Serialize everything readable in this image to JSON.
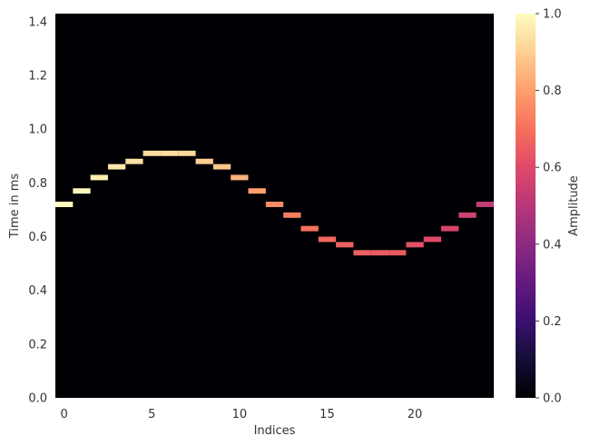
{
  "chart_data": {
    "type": "heatmap",
    "colormap": "magma",
    "background_color": "#000004",
    "xlabel": "Indices",
    "ylabel": "Time in ms",
    "colorbar_label": "Amplitude",
    "xlim": [
      -0.5,
      24.5
    ],
    "ylim": [
      0,
      1.43
    ],
    "x_ticks": [
      0,
      5,
      10,
      15,
      20
    ],
    "y_ticks": [
      0.0,
      0.2,
      0.4,
      0.6,
      0.8,
      1.0,
      1.2,
      1.4
    ],
    "y_tick_labels": [
      "0.0",
      "0.2",
      "0.4",
      "0.6",
      "0.8",
      "1.0",
      "1.2",
      "1.4"
    ],
    "colorbar_range": [
      0,
      1
    ],
    "colorbar_ticks": [
      0.0,
      0.2,
      0.4,
      0.6,
      0.8,
      1.0
    ],
    "colorbar_tick_labels": [
      "0.0",
      "0.2",
      "0.4",
      "0.6",
      "0.8",
      "1.0"
    ],
    "cell_height_ms": 0.02,
    "cells": [
      {
        "index": 0,
        "time_ms": 0.72,
        "amplitude": 1.0
      },
      {
        "index": 1,
        "time_ms": 0.77,
        "amplitude": 0.99
      },
      {
        "index": 2,
        "time_ms": 0.82,
        "amplitude": 0.97
      },
      {
        "index": 3,
        "time_ms": 0.86,
        "amplitude": 0.95
      },
      {
        "index": 4,
        "time_ms": 0.88,
        "amplitude": 0.94
      },
      {
        "index": 5,
        "time_ms": 0.91,
        "amplitude": 0.93
      },
      {
        "index": 6,
        "time_ms": 0.91,
        "amplitude": 0.93
      },
      {
        "index": 7,
        "time_ms": 0.91,
        "amplitude": 0.92
      },
      {
        "index": 8,
        "time_ms": 0.88,
        "amplitude": 0.9
      },
      {
        "index": 9,
        "time_ms": 0.86,
        "amplitude": 0.88
      },
      {
        "index": 10,
        "time_ms": 0.82,
        "amplitude": 0.84
      },
      {
        "index": 11,
        "time_ms": 0.77,
        "amplitude": 0.8
      },
      {
        "index": 12,
        "time_ms": 0.72,
        "amplitude": 0.76
      },
      {
        "index": 13,
        "time_ms": 0.68,
        "amplitude": 0.73
      },
      {
        "index": 14,
        "time_ms": 0.63,
        "amplitude": 0.7
      },
      {
        "index": 15,
        "time_ms": 0.59,
        "amplitude": 0.68
      },
      {
        "index": 16,
        "time_ms": 0.57,
        "amplitude": 0.66
      },
      {
        "index": 17,
        "time_ms": 0.54,
        "amplitude": 0.66
      },
      {
        "index": 18,
        "time_ms": 0.54,
        "amplitude": 0.65
      },
      {
        "index": 19,
        "time_ms": 0.54,
        "amplitude": 0.64
      },
      {
        "index": 20,
        "time_ms": 0.57,
        "amplitude": 0.62
      },
      {
        "index": 21,
        "time_ms": 0.59,
        "amplitude": 0.6
      },
      {
        "index": 22,
        "time_ms": 0.63,
        "amplitude": 0.58
      },
      {
        "index": 23,
        "time_ms": 0.68,
        "amplitude": 0.56
      },
      {
        "index": 24,
        "time_ms": 0.72,
        "amplitude": 0.53
      }
    ]
  }
}
